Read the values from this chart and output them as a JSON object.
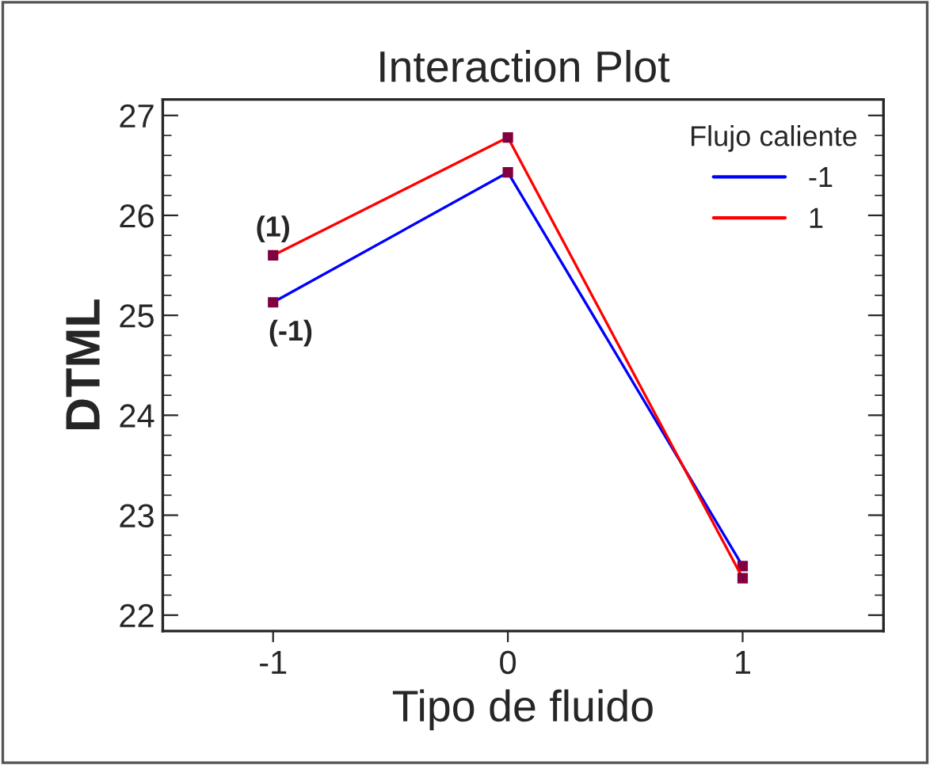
{
  "chart_data": {
    "type": "line",
    "title": "Interaction Plot",
    "xlabel": "Tipo de fluido",
    "ylabel": "DTML",
    "legend_title": "Flujo caliente",
    "x": [
      -1,
      0,
      1
    ],
    "series": [
      {
        "name": "-1",
        "color": "#0000ff",
        "values": [
          25.13,
          26.43,
          22.49
        ]
      },
      {
        "name": "1",
        "color": "#ff0000",
        "values": [
          25.6,
          26.78,
          22.37
        ]
      }
    ],
    "xlim": [
      -1.47,
      1.6
    ],
    "xticks": [
      -1,
      0,
      1
    ],
    "ylim": [
      21.84,
      27.16
    ],
    "yticks": [
      22,
      23,
      24,
      25,
      26,
      27
    ],
    "marker": "square",
    "legend": "top right",
    "grid": false,
    "annotations": [
      {
        "text": "(1)",
        "x": -1,
        "y": 25.6
      },
      {
        "text": "(-1)",
        "x": -1,
        "y": 25.13
      }
    ]
  }
}
